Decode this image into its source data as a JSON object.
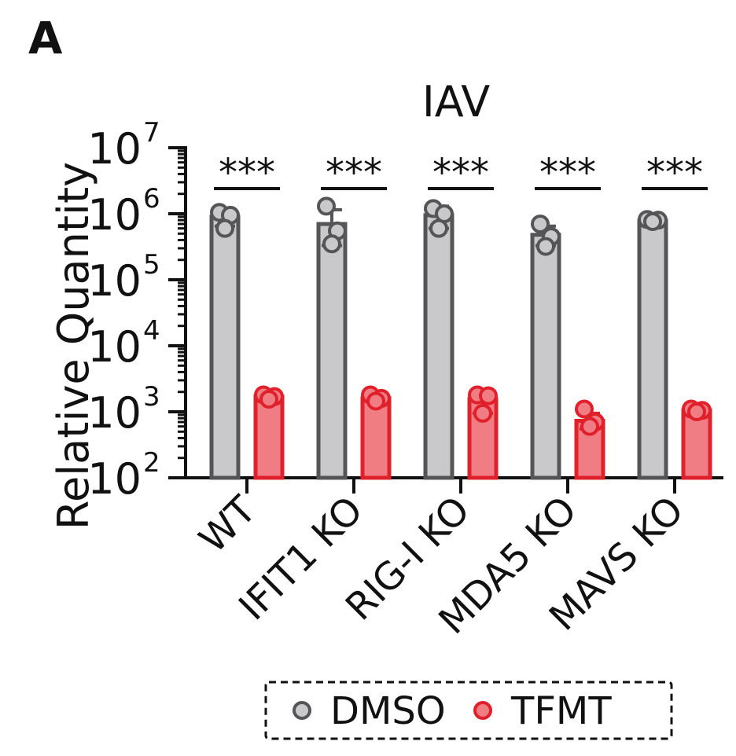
{
  "panel_label": "A",
  "chart_data": {
    "type": "bar",
    "title": "IAV",
    "ylabel": "Relative Quantity",
    "xlabel": "",
    "yscale": "log",
    "ylim": [
      100,
      10000000
    ],
    "y_ticks": [
      {
        "value": 100,
        "base": "10",
        "exp": "2"
      },
      {
        "value": 1000,
        "base": "10",
        "exp": "3"
      },
      {
        "value": 10000,
        "base": "10",
        "exp": "4"
      },
      {
        "value": 100000,
        "base": "10",
        "exp": "5"
      },
      {
        "value": 1000000,
        "base": "10",
        "exp": "6"
      },
      {
        "value": 10000000,
        "base": "10",
        "exp": "7"
      }
    ],
    "categories": [
      "WT",
      "IFIT1 KO",
      "RIG-I KO",
      "MDA5 KO",
      "MAVS KO"
    ],
    "significance": [
      "***",
      "***",
      "***",
      "***",
      "***"
    ],
    "series": [
      {
        "name": "DMSO",
        "color": "#c9c9cb",
        "edge": "#555558",
        "values": [
          900000,
          700000,
          950000,
          480000,
          780000
        ],
        "err_low": [
          650000,
          330000,
          600000,
          330000,
          720000
        ],
        "err_high": [
          1150000,
          1150000,
          1300000,
          650000,
          840000
        ],
        "points": [
          [
            1050000,
            950000,
            600000
          ],
          [
            1300000,
            550000,
            350000
          ],
          [
            1200000,
            1000000,
            600000
          ],
          [
            700000,
            450000,
            320000
          ],
          [
            820000,
            800000,
            760000
          ]
        ]
      },
      {
        "name": "TFMT",
        "color": "#f07d84",
        "edge": "#e0202a",
        "values": [
          1700,
          1600,
          1550,
          730,
          1050
        ],
        "err_low": [
          1500,
          1450,
          950,
          550,
          950
        ],
        "err_high": [
          1900,
          1800,
          2100,
          950,
          1150
        ],
        "points": [
          [
            1800,
            1700,
            1550
          ],
          [
            1800,
            1600,
            1450
          ],
          [
            1800,
            1750,
            950
          ],
          [
            1100,
            700,
            600
          ],
          [
            1100,
            1050,
            1000
          ]
        ]
      }
    ],
    "legend": {
      "position": "bottom",
      "border": "dashed"
    }
  }
}
